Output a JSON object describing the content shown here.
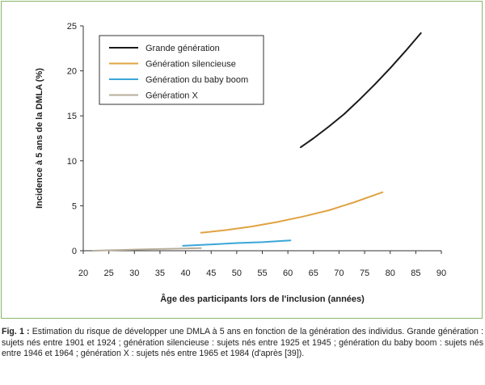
{
  "chart_data": {
    "type": "line",
    "title": "",
    "xlabel": "Âge des participants lors de l'inclusion (années)",
    "ylabel": "Incidence à 5 ans de la DMLA (%)",
    "xlim": [
      20,
      90
    ],
    "ylim": [
      0,
      25
    ],
    "xticks": [
      20,
      25,
      30,
      35,
      40,
      45,
      50,
      55,
      60,
      65,
      70,
      75,
      80,
      85,
      90
    ],
    "yticks": [
      0,
      5,
      10,
      15,
      20,
      25
    ],
    "grid": false,
    "legend_position": "top-left",
    "series": [
      {
        "name": "Grande génération",
        "color": "#1a1a1a",
        "x": [
          62.5,
          65,
          68,
          71,
          74,
          77,
          80,
          83,
          86
        ],
        "y": [
          11.5,
          12.5,
          13.8,
          15.2,
          16.8,
          18.5,
          20.3,
          22.2,
          24.2
        ]
      },
      {
        "name": "Génération silencieuse",
        "color": "#e0a342",
        "x": [
          43,
          48,
          53,
          58,
          63,
          68,
          73,
          78.5
        ],
        "y": [
          2.0,
          2.3,
          2.7,
          3.2,
          3.8,
          4.5,
          5.4,
          6.5
        ]
      },
      {
        "name": "Génération du baby boom",
        "color": "#3aa6d8",
        "x": [
          39.5,
          45,
          50,
          55,
          60.5
        ],
        "y": [
          0.55,
          0.7,
          0.85,
          0.95,
          1.15
        ]
      },
      {
        "name": "Génération X",
        "color": "#b7ad9a",
        "x": [
          22,
          27,
          32,
          37,
          43
        ],
        "y": [
          0.0,
          0.08,
          0.15,
          0.22,
          0.3
        ]
      }
    ]
  },
  "caption": {
    "label": "Fig. 1 :",
    "text": " Estimation du risque de développer une DMLA à 5 ans en fonction de la génération des individus. Grande génération : sujets nés entre 1901 et 1924 ; génération silencieuse : sujets nés entre 1925 et 1945 ; génération du baby boom : sujets nés entre 1946 et 1964 ; génération X : sujets nés entre 1965 et 1984 (d'après [39])."
  }
}
